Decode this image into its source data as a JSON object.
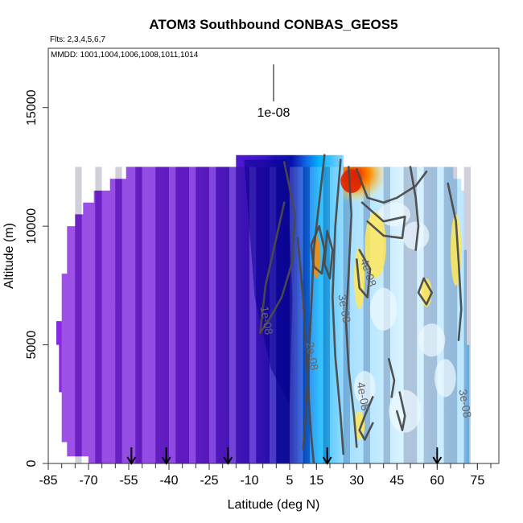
{
  "chart_data": {
    "type": "heatmap",
    "title": "ATOM3 Southbound CONBAS_GEOS5",
    "subtitle_flights": "Flts: 2,3,4,5,6,7",
    "subtitle_dates": "MMDD: 1001,1004,1006,1008,1011,1014",
    "xlabel": "Latitude (deg N)",
    "ylabel": "Altitude (m)",
    "xlim": [
      -85,
      83
    ],
    "ylim": [
      0,
      17500
    ],
    "x_ticks": [
      -85,
      -70,
      -55,
      -40,
      -25,
      -10,
      5,
      15,
      30,
      45,
      60,
      75
    ],
    "y_ticks": [
      0,
      5000,
      10000,
      15000
    ],
    "legend": {
      "label": "1e-08",
      "placement": "top-center"
    },
    "flight_markers_lat": [
      -54,
      -41,
      -18,
      19,
      60
    ],
    "contour_labels": [
      {
        "text": "1e-08",
        "lat": -5,
        "alt": 6000
      },
      {
        "text": "2e-08",
        "lat": 12,
        "alt": 4500
      },
      {
        "text": "3e-08",
        "lat": 24,
        "alt": 6500
      },
      {
        "text": "4e-08",
        "lat": 33,
        "alt": 8000
      },
      {
        "text": "4e-08",
        "lat": 31,
        "alt": 2800
      },
      {
        "text": "3e-08",
        "lat": 69,
        "alt": 2500
      }
    ],
    "colors": {
      "purple": "#8a2be2",
      "violet": "#6a1fd8",
      "blue": "#2a10c8",
      "navy": "#0a0090",
      "cyan": "#00b0ff",
      "light": "#d8f2ff",
      "yellow": "#ffe85a",
      "orange": "#ff8a00",
      "red": "#dd2200"
    }
  }
}
